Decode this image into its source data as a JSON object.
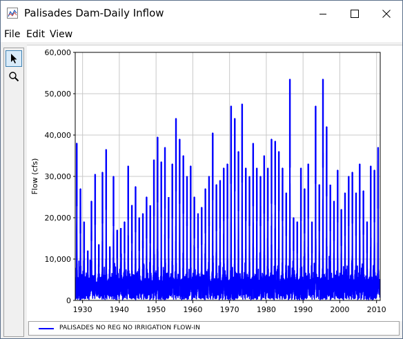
{
  "window": {
    "title": "Palisades Dam-Daily Inflow",
    "controls": {
      "minimize": "minimize",
      "maximize": "maximize",
      "close": "close"
    }
  },
  "menu": {
    "items": [
      "File",
      "Edit",
      "View"
    ]
  },
  "toolbar": {
    "tools": [
      {
        "icon": "pointer-arrow-icon",
        "active": true
      },
      {
        "icon": "zoom-magnifier-icon",
        "active": false
      }
    ]
  },
  "chart_data": {
    "type": "line",
    "title": "",
    "xlabel": "",
    "ylabel": "Flow (cfs)",
    "xlim": [
      1928,
      2011
    ],
    "ylim": [
      0,
      60000
    ],
    "x_ticks": [
      "1930",
      "1940",
      "1950",
      "1960",
      "1970",
      "1980",
      "1990",
      "2000",
      "2010"
    ],
    "y_ticks": [
      "0",
      "10,000",
      "20,000",
      "30,000",
      "40,000",
      "50,000",
      "60,000"
    ],
    "grid": true,
    "legend_position": "bottom",
    "series": [
      {
        "name": "PALISADES NO REG NO IRRIGATION FLOW-IN",
        "color": "#0000ff",
        "annual_peaks": [
          {
            "year": 1928,
            "peak": 38000
          },
          {
            "year": 1929,
            "peak": 27000
          },
          {
            "year": 1930,
            "peak": 19000
          },
          {
            "year": 1931,
            "peak": 12000
          },
          {
            "year": 1932,
            "peak": 24000
          },
          {
            "year": 1933,
            "peak": 30500
          },
          {
            "year": 1934,
            "peak": 13500
          },
          {
            "year": 1935,
            "peak": 31000
          },
          {
            "year": 1936,
            "peak": 36500
          },
          {
            "year": 1937,
            "peak": 13000
          },
          {
            "year": 1938,
            "peak": 30000
          },
          {
            "year": 1939,
            "peak": 17000
          },
          {
            "year": 1940,
            "peak": 17500
          },
          {
            "year": 1941,
            "peak": 19000
          },
          {
            "year": 1942,
            "peak": 32500
          },
          {
            "year": 1943,
            "peak": 23000
          },
          {
            "year": 1944,
            "peak": 27500
          },
          {
            "year": 1945,
            "peak": 20000
          },
          {
            "year": 1946,
            "peak": 21000
          },
          {
            "year": 1947,
            "peak": 25000
          },
          {
            "year": 1948,
            "peak": 23000
          },
          {
            "year": 1949,
            "peak": 34000
          },
          {
            "year": 1950,
            "peak": 39500
          },
          {
            "year": 1951,
            "peak": 33500
          },
          {
            "year": 1952,
            "peak": 37000
          },
          {
            "year": 1953,
            "peak": 25000
          },
          {
            "year": 1954,
            "peak": 33000
          },
          {
            "year": 1955,
            "peak": 44000
          },
          {
            "year": 1956,
            "peak": 39000
          },
          {
            "year": 1957,
            "peak": 35000
          },
          {
            "year": 1958,
            "peak": 30000
          },
          {
            "year": 1959,
            "peak": 32500
          },
          {
            "year": 1960,
            "peak": 25000
          },
          {
            "year": 1961,
            "peak": 21000
          },
          {
            "year": 1962,
            "peak": 22500
          },
          {
            "year": 1963,
            "peak": 27000
          },
          {
            "year": 1964,
            "peak": 30000
          },
          {
            "year": 1965,
            "peak": 40500
          },
          {
            "year": 1966,
            "peak": 28000
          },
          {
            "year": 1967,
            "peak": 29000
          },
          {
            "year": 1968,
            "peak": 32000
          },
          {
            "year": 1969,
            "peak": 33000
          },
          {
            "year": 1970,
            "peak": 47000
          },
          {
            "year": 1971,
            "peak": 44000
          },
          {
            "year": 1972,
            "peak": 36000
          },
          {
            "year": 1973,
            "peak": 47500
          },
          {
            "year": 1974,
            "peak": 32000
          },
          {
            "year": 1975,
            "peak": 30000
          },
          {
            "year": 1976,
            "peak": 38000
          },
          {
            "year": 1977,
            "peak": 32000
          },
          {
            "year": 1978,
            "peak": 30000
          },
          {
            "year": 1979,
            "peak": 35000
          },
          {
            "year": 1980,
            "peak": 32000
          },
          {
            "year": 1981,
            "peak": 39000
          },
          {
            "year": 1982,
            "peak": 38500
          },
          {
            "year": 1983,
            "peak": 36000
          },
          {
            "year": 1984,
            "peak": 32000
          },
          {
            "year": 1985,
            "peak": 26000
          },
          {
            "year": 1986,
            "peak": 53500
          },
          {
            "year": 1987,
            "peak": 20000
          },
          {
            "year": 1988,
            "peak": 19000
          },
          {
            "year": 1989,
            "peak": 32000
          },
          {
            "year": 1990,
            "peak": 27000
          },
          {
            "year": 1991,
            "peak": 33000
          },
          {
            "year": 1992,
            "peak": 19000
          },
          {
            "year": 1993,
            "peak": 47000
          },
          {
            "year": 1994,
            "peak": 28000
          },
          {
            "year": 1995,
            "peak": 53500
          },
          {
            "year": 1996,
            "peak": 42000
          },
          {
            "year": 1997,
            "peak": 28000
          },
          {
            "year": 1998,
            "peak": 24000
          },
          {
            "year": 1999,
            "peak": 31500
          },
          {
            "year": 2000,
            "peak": 22000
          },
          {
            "year": 2001,
            "peak": 26000
          },
          {
            "year": 2002,
            "peak": 30000
          },
          {
            "year": 2003,
            "peak": 31000
          },
          {
            "year": 2004,
            "peak": 26000
          },
          {
            "year": 2005,
            "peak": 33000
          },
          {
            "year": 2006,
            "peak": 26500
          },
          {
            "year": 2007,
            "peak": 19000
          },
          {
            "year": 2008,
            "peak": 32500
          },
          {
            "year": 2009,
            "peak": 31500
          },
          {
            "year": 2010,
            "peak": 37000
          }
        ],
        "typical_base_flow": [
          1000,
          5000
        ]
      }
    ]
  }
}
